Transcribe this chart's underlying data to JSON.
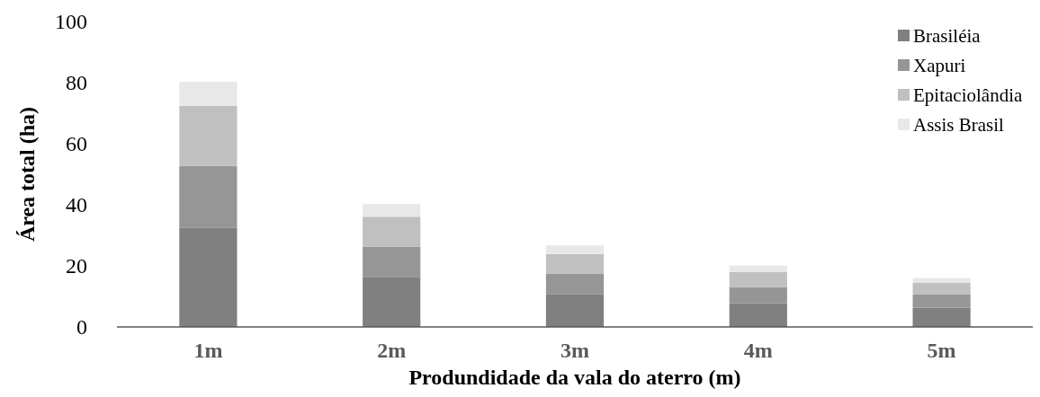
{
  "chart_data": {
    "type": "bar",
    "stacked": true,
    "xlabel": "Produndidade da vala do aterro (m)",
    "ylabel": "Área total (ha)",
    "categories": [
      "1m",
      "2m",
      "3m",
      "4m",
      "5m"
    ],
    "series": [
      {
        "name": "Brasiléia",
        "color": "#808080",
        "values": [
          32.4,
          16.2,
          10.8,
          7.8,
          6.3
        ]
      },
      {
        "name": "Xapuri",
        "color": "#969696",
        "values": [
          20.3,
          10.1,
          6.7,
          5.2,
          4.3
        ]
      },
      {
        "name": "Epitaciolândia",
        "color": "#c0c0c0",
        "values": [
          19.7,
          9.8,
          6.4,
          5.0,
          3.9
        ]
      },
      {
        "name": "Assis Brasil",
        "color": "#e8e8e8",
        "values": [
          7.9,
          4.1,
          2.8,
          2.1,
          1.5
        ]
      }
    ],
    "ylim": [
      0,
      100
    ],
    "yticks": [
      0,
      20,
      40,
      60,
      80,
      100
    ],
    "grid": false,
    "legend": "top right"
  }
}
